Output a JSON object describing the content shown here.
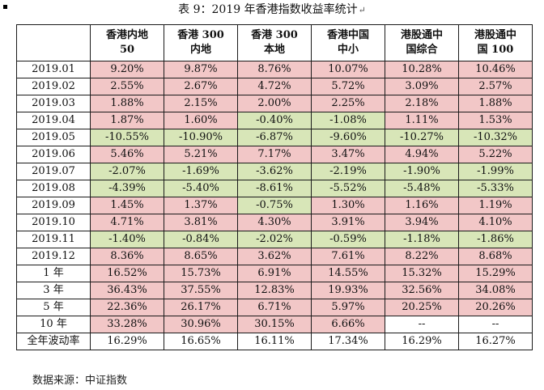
{
  "caption": {
    "text": "表 9：2019 年香港指数收益率统计",
    "mark": "↵"
  },
  "table": {
    "headers": [
      {
        "line1": "",
        "line2": ""
      },
      {
        "line1": "香港内地",
        "line2": "50"
      },
      {
        "line1": "香港 300",
        "line2": "内地"
      },
      {
        "line1": "香港 300",
        "line2": "本地"
      },
      {
        "line1": "香港中国",
        "line2": "中小"
      },
      {
        "line1": "港股通中",
        "line2": "国综合"
      },
      {
        "line1": "港股通中",
        "line2": "国 100"
      }
    ],
    "colors": {
      "positive": "#f2c7c7",
      "negative": "#d8e6b8"
    },
    "rows": [
      {
        "label": "2019.01",
        "values": [
          "9.20%",
          "9.87%",
          "8.76%",
          "10.07%",
          "10.28%",
          "10.46%"
        ]
      },
      {
        "label": "2019.02",
        "values": [
          "2.55%",
          "2.67%",
          "4.72%",
          "5.72%",
          "3.09%",
          "2.57%"
        ]
      },
      {
        "label": "2019.03",
        "values": [
          "1.88%",
          "2.15%",
          "2.00%",
          "2.25%",
          "2.18%",
          "1.88%"
        ]
      },
      {
        "label": "2019.04",
        "values": [
          "1.87%",
          "1.60%",
          "-0.40%",
          "-1.08%",
          "1.11%",
          "1.53%"
        ]
      },
      {
        "label": "2019.05",
        "values": [
          "-10.55%",
          "-10.90%",
          "-6.87%",
          "-9.60%",
          "-10.27%",
          "-10.32%"
        ]
      },
      {
        "label": "2019.06",
        "values": [
          "5.46%",
          "5.21%",
          "7.17%",
          "3.47%",
          "4.94%",
          "5.22%"
        ]
      },
      {
        "label": "2019.07",
        "values": [
          "-2.07%",
          "-1.69%",
          "-3.62%",
          "-2.19%",
          "-1.90%",
          "-1.99%"
        ]
      },
      {
        "label": "2019.08",
        "values": [
          "-4.39%",
          "-5.40%",
          "-8.61%",
          "-5.52%",
          "-5.48%",
          "-5.33%"
        ]
      },
      {
        "label": "2019.09",
        "values": [
          "1.45%",
          "1.37%",
          "-0.75%",
          "1.30%",
          "1.16%",
          "1.19%"
        ]
      },
      {
        "label": "2019.10",
        "values": [
          "4.71%",
          "3.81%",
          "4.30%",
          "3.91%",
          "3.94%",
          "4.10%"
        ]
      },
      {
        "label": "2019.11",
        "values": [
          "-1.40%",
          "-0.84%",
          "-2.02%",
          "-0.59%",
          "-1.18%",
          "-1.86%"
        ]
      },
      {
        "label": "2019.12",
        "values": [
          "8.36%",
          "8.65%",
          "3.62%",
          "7.61%",
          "8.22%",
          "8.68%"
        ]
      },
      {
        "label": "1 年",
        "values": [
          "16.52%",
          "15.73%",
          "6.91%",
          "14.55%",
          "15.32%",
          "15.29%"
        ]
      },
      {
        "label": "3 年",
        "values": [
          "36.43%",
          "37.55%",
          "12.83%",
          "19.93%",
          "32.56%",
          "34.08%"
        ]
      },
      {
        "label": "5 年",
        "values": [
          "22.36%",
          "26.17%",
          "6.71%",
          "5.97%",
          "20.25%",
          "20.26%"
        ]
      },
      {
        "label": "10 年",
        "values": [
          "33.28%",
          "30.96%",
          "30.15%",
          "6.66%",
          "--",
          "--"
        ]
      },
      {
        "label": "全年波动率",
        "values": [
          "16.29%",
          "16.65%",
          "16.11%",
          "17.34%",
          "16.29%",
          "16.27%"
        ],
        "neutral": true
      }
    ]
  },
  "source": {
    "text": "数据来源：中证指数"
  }
}
